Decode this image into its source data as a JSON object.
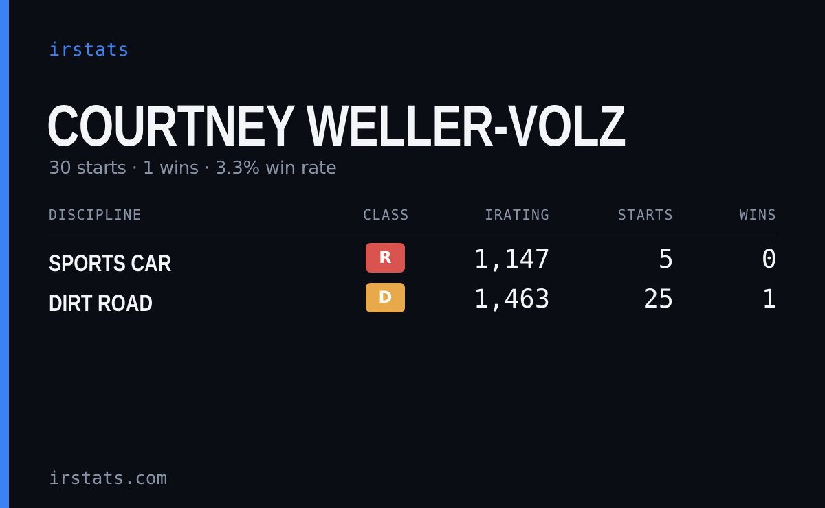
{
  "brand": "irstats",
  "driver_name": "COURTNEY WELLER-VOLZ",
  "summary": "30 starts · 1 wins · 3.3% win rate",
  "table": {
    "headers": {
      "discipline": "DISCIPLINE",
      "class": "CLASS",
      "irating": "IRATING",
      "starts": "STARTS",
      "wins": "WINS"
    },
    "rows": [
      {
        "discipline": "SPORTS CAR",
        "class": "R",
        "class_color": "#d9534f",
        "irating": "1,147",
        "starts": "5",
        "wins": "0"
      },
      {
        "discipline": "DIRT ROAD",
        "class": "D",
        "class_color": "#e8a94b",
        "irating": "1,463",
        "starts": "25",
        "wins": "1"
      }
    ]
  },
  "footer": "irstats.com",
  "colors": {
    "background": "#0a0d14",
    "accent": "#3b82f6",
    "text_primary": "#f4f5f8",
    "text_muted": "#8a94a8"
  }
}
